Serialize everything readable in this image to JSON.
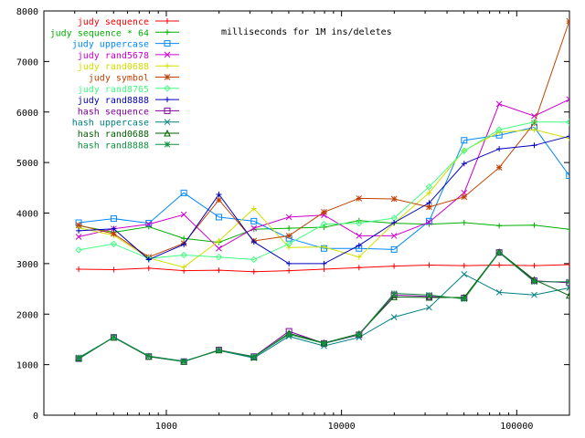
{
  "chart_data": {
    "type": "line",
    "title": "milliseconds for 1M ins/deletes",
    "xlabel": "",
    "ylabel": "",
    "xscale": "log",
    "xlim": [
      200,
      200000
    ],
    "ylim": [
      0,
      8000
    ],
    "grid": false,
    "legend_position": "top-left",
    "xticks": [
      1000,
      10000,
      100000
    ],
    "xtick_labels": [
      "1000",
      "10000",
      "100000"
    ],
    "yticks": [
      0,
      1000,
      2000,
      3000,
      4000,
      5000,
      6000,
      7000,
      8000
    ],
    "ytick_labels": [
      "0",
      "1000",
      "2000",
      "3000",
      "4000",
      "5000",
      "6000",
      "7000",
      "8000"
    ],
    "x": [
      316,
      501,
      794,
      1259,
      1995,
      3162,
      5012,
      7943,
      12589,
      19953,
      31623,
      50119,
      79433,
      125893,
      199526
    ],
    "series": [
      {
        "name": "judy sequence",
        "color": "#ff0000",
        "marker": "plus",
        "values": [
          2890,
          2880,
          2910,
          2860,
          2870,
          2840,
          2860,
          2890,
          2920,
          2950,
          2970,
          2960,
          2970,
          2960,
          2980
        ]
      },
      {
        "name": "judy sequence * 64",
        "color": "#00b000",
        "marker": "plus",
        "values": [
          3750,
          3620,
          3730,
          3500,
          3420,
          3680,
          3700,
          3720,
          3850,
          3800,
          3780,
          3810,
          3750,
          3760,
          3680
        ]
      },
      {
        "name": "judy uppercase",
        "color": "#0088ff",
        "marker": "square",
        "values": [
          3810,
          3890,
          3800,
          4400,
          3920,
          3840,
          3500,
          3300,
          3300,
          3280,
          3840,
          5440,
          5540,
          5700,
          4740
        ]
      },
      {
        "name": "judy rand5678",
        "color": "#cc00cc",
        "marker": "x",
        "values": [
          3530,
          3690,
          3780,
          3970,
          3300,
          3700,
          3920,
          3960,
          3550,
          3550,
          3820,
          4400,
          6160,
          5920,
          6250
        ]
      },
      {
        "name": "judy rand0688",
        "color": "#d0e000",
        "marker": "plus",
        "values": [
          3710,
          3560,
          3110,
          2930,
          3450,
          4090,
          3320,
          3330,
          3130,
          3800,
          4400,
          5240,
          5600,
          5650,
          5480
        ]
      },
      {
        "name": "judy symbol",
        "color": "#c04000",
        "marker": "star",
        "values": [
          3760,
          3590,
          3130,
          3400,
          4260,
          3450,
          3550,
          4020,
          4290,
          4280,
          4120,
          4320,
          4900,
          5780,
          7800
        ]
      },
      {
        "name": "judy rand8765",
        "color": "#40ff80",
        "marker": "diamond",
        "values": [
          3270,
          3390,
          3100,
          3170,
          3130,
          3080,
          3390,
          3780,
          3800,
          3900,
          4520,
          5230,
          5650,
          5800,
          5800
        ]
      },
      {
        "name": "judy rand8888",
        "color": "#0000c0",
        "marker": "plus",
        "values": [
          3650,
          3690,
          3080,
          3380,
          4370,
          3430,
          3000,
          3000,
          3360,
          3810,
          4200,
          4980,
          5270,
          5340,
          5520
        ]
      },
      {
        "name": "hash sequence",
        "color": "#8000a0",
        "marker": "square",
        "values": [
          1120,
          1540,
          1160,
          1060,
          1290,
          1160,
          1660,
          1420,
          1590,
          2380,
          2350,
          2320,
          3220,
          2660,
          2620
        ]
      },
      {
        "name": "hash uppercase",
        "color": "#008080",
        "marker": "x",
        "values": [
          1110,
          1550,
          1170,
          1070,
          1280,
          1130,
          1560,
          1370,
          1540,
          1940,
          2130,
          2790,
          2430,
          2380,
          2520
        ]
      },
      {
        "name": "hash rand0688",
        "color": "#006000",
        "marker": "triangle",
        "values": [
          1130,
          1540,
          1160,
          1060,
          1290,
          1150,
          1620,
          1430,
          1610,
          2340,
          2330,
          2330,
          3230,
          2680,
          2370
        ]
      },
      {
        "name": "hash rand8888",
        "color": "#109040",
        "marker": "star",
        "values": [
          1140,
          1540,
          1170,
          1060,
          1280,
          1160,
          1600,
          1420,
          1600,
          2410,
          2380,
          2300,
          3220,
          2640,
          2640
        ]
      }
    ]
  }
}
